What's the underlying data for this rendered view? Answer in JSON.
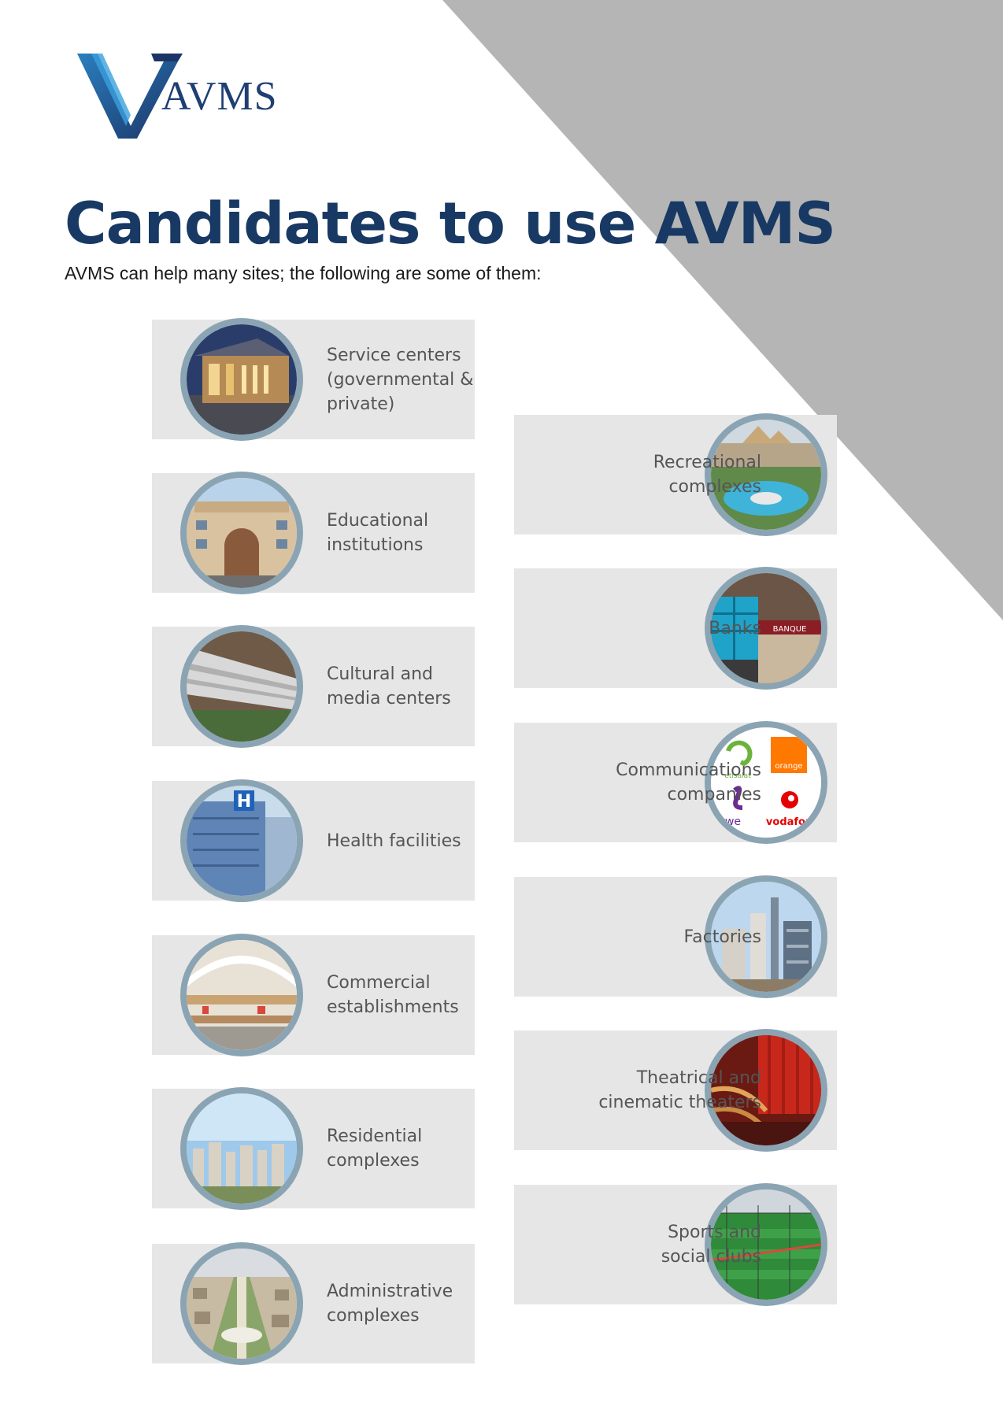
{
  "brand": {
    "logo_text": "AVMS"
  },
  "heading": {
    "title": "Candidates to use AVMS",
    "subtitle": "AVMS can help many sites; the following are some of them:"
  },
  "left_items": [
    {
      "label": "Service centers\n(governmental & private)",
      "image": "building-photo-icon"
    },
    {
      "label": "Educational\ninstitutions",
      "image": "university-photo-icon"
    },
    {
      "label": "Cultural and\nmedia centers",
      "image": "library-photo-icon"
    },
    {
      "label": "Health facilities",
      "image": "hospital-photo-icon"
    },
    {
      "label": "Commercial\nestablishments",
      "image": "mall-photo-icon"
    },
    {
      "label": "Residential\ncomplexes",
      "image": "residential-photo-icon"
    },
    {
      "label": "Administrative\ncomplexes",
      "image": "aerial-city-photo-icon"
    }
  ],
  "right_items": [
    {
      "label": "Recreational\ncomplexes",
      "image": "resort-photo-icon"
    },
    {
      "label": "Banks",
      "image": "bank-photo-icon"
    },
    {
      "label": "Communications\ncompanies",
      "image": "telecom-logos-icon"
    },
    {
      "label": "Factories",
      "image": "factory-photo-icon"
    },
    {
      "label": "Theatrical and\ncinematic theaters",
      "image": "theater-photo-icon"
    },
    {
      "label": "Sports and\nsocial clubs",
      "image": "sports-field-photo-icon"
    }
  ],
  "telecom_logos": [
    "etisalat",
    "orange",
    "we",
    "vodafone"
  ],
  "colors": {
    "title": "#183963",
    "triangle": "#b5b5b5",
    "card": "#e6e6e6",
    "ring": "#8aa4b4"
  }
}
